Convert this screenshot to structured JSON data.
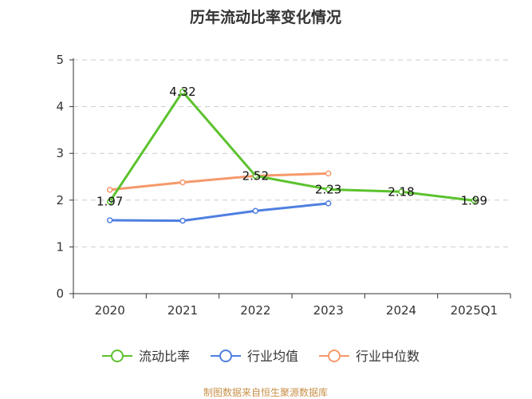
{
  "chart_data": {
    "type": "line",
    "title": "历年流动比率变化情况",
    "categories": [
      "2020",
      "2021",
      "2022",
      "2023",
      "2024",
      "2025Q1"
    ],
    "ylim": [
      0,
      5
    ],
    "yticks": [
      "0",
      "1",
      "2",
      "3",
      "4",
      "5"
    ],
    "grid": true,
    "legend_position": "bottom",
    "series": [
      {
        "name": "流动比率",
        "color": "#5cc22e",
        "values": [
          1.97,
          4.32,
          2.52,
          2.23,
          2.18,
          1.99
        ],
        "labels": [
          "1.97",
          "4.32",
          "2.52",
          "2.23",
          "2.18",
          "1.99"
        ]
      },
      {
        "name": "行业均值",
        "color": "#4f7fe0",
        "values": [
          1.57,
          1.56,
          1.77,
          1.93,
          null,
          null
        ]
      },
      {
        "name": "行业中位数",
        "color": "#f5996b",
        "values": [
          2.22,
          2.38,
          2.52,
          2.57,
          null,
          null
        ]
      }
    ]
  },
  "footer": {
    "source": "制图数据来自恒生聚源数据库"
  }
}
